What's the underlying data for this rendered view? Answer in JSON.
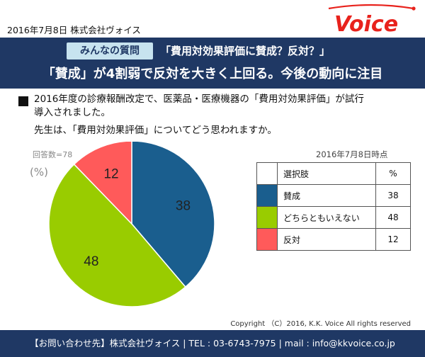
{
  "header": {
    "date_company": "2016年7月8日 株式会社ヴォイス",
    "logo_text": "Voice"
  },
  "banner": {
    "badge": "みんなの質問",
    "question": "「費用対効果評価に賛成？反対？」",
    "headline": "「賛成」が4割弱で反対を大きく上回る。今後の動向に注目"
  },
  "question": {
    "line1": "2016年度の診療報酬改定で、医薬品・医療機器の「費用対効果評価」が試行",
    "line2": "導入されました。",
    "line3": "先生は、「費用対効果評価」についてどう思われますか。"
  },
  "notes": {
    "respondents": "回答数=78",
    "as_of": "2016年7月8日時点",
    "unit": "(%)"
  },
  "legend": {
    "header_choice": "選択肢",
    "header_pct": "%"
  },
  "chart_data": {
    "type": "pie",
    "categories": [
      "賛成",
      "どちらともいえない",
      "反対"
    ],
    "values": [
      38,
      48,
      12
    ],
    "colors": [
      "#1a5e8e",
      "#99cc00",
      "#ff5a5a"
    ],
    "labels": [
      "38",
      "48",
      "12"
    ]
  },
  "copyright": "Copyright （C）2016, K.K. Voice All rights reserved",
  "footer": "【お問い合わせ先】株式会社ヴォイス | TEL : 03-6743-7975 | mail : info@kkvoice.co.jp"
}
